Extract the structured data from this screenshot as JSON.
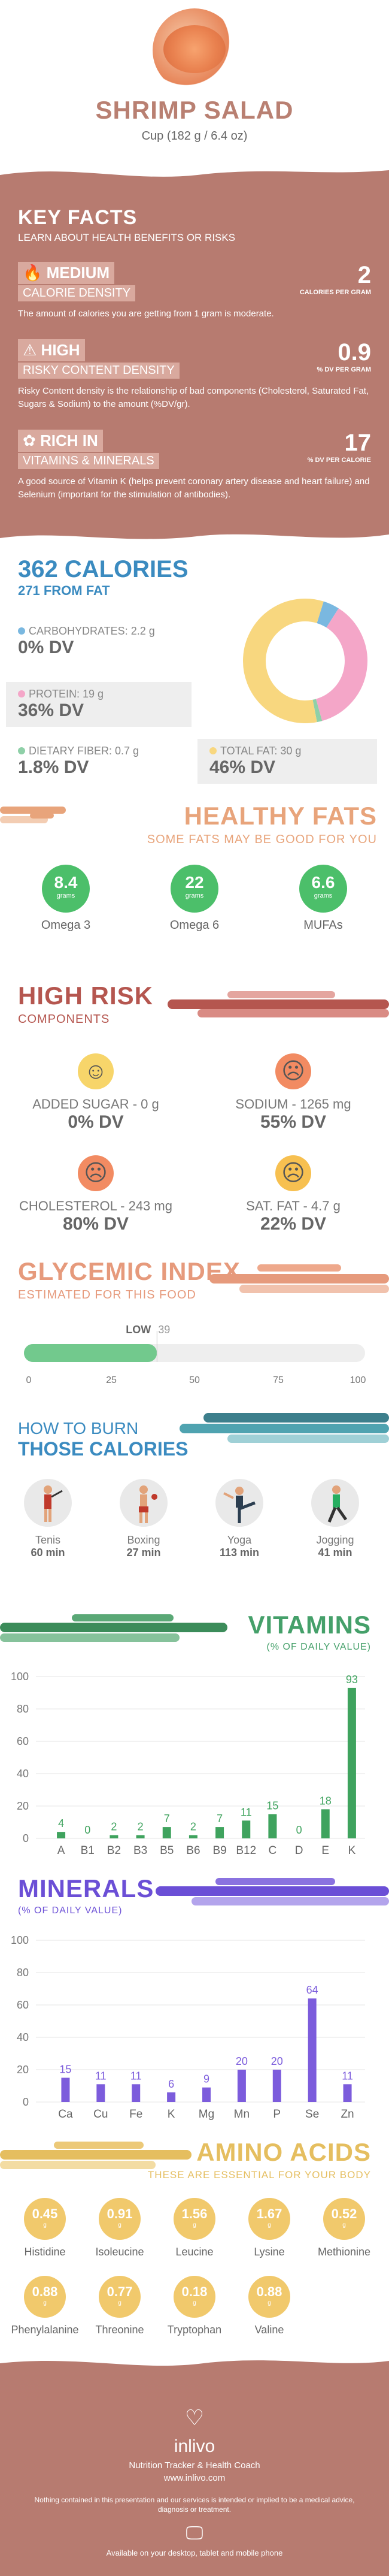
{
  "header": {
    "title": "SHRIMP SALAD",
    "serving": "Cup (182 g / 6.4 oz)"
  },
  "key_facts": {
    "title": "KEY FACTS",
    "subtitle": "LEARN ABOUT HEALTH BENEFITS OR RISKS",
    "facts": [
      {
        "tag1": "MEDIUM",
        "tag2": "CALORIE DENSITY",
        "value": "2",
        "unit": "CALORIES PER GRAM",
        "desc": "The amount of calories you are getting from 1 gram is moderate.",
        "icon": "flame-icon"
      },
      {
        "tag1": "HIGH",
        "tag2": "RISKY CONTENT DENSITY",
        "value": "0.9",
        "unit": "% DV PER GRAM",
        "desc": "Risky Content density is the relationship of bad components (Cholesterol, Saturated Fat, Sugars & Sodium) to the amount (%DV/gr).",
        "icon": "warning-icon"
      },
      {
        "tag1": "RICH  IN",
        "tag2": "VITAMINS & MINERALS",
        "value": "17",
        "unit": "% DV PER CALORIE",
        "desc": "A good source of Vitamin K (helps prevent coronary artery disease and heart failure) and Selenium (important for the stimulation of antibodies).",
        "icon": "leaf-icon"
      }
    ]
  },
  "calories": {
    "title": "362 CALORIES",
    "from_fat": "271 FROM FAT",
    "carbs_label": "CARBOHYDRATES: 2.2 g",
    "carbs_dv": "0% DV",
    "protein_label": "PROTEIN: 19 g",
    "protein_dv": "36% DV",
    "fiber_label": "DIETARY FIBER: 0.7 g",
    "fiber_dv": "1.8% DV",
    "fat_label": "TOTAL FAT: 30 g",
    "fat_dv": "46% DV",
    "colors": {
      "carbs": "#7ab8e0",
      "protein": "#f4a6c8",
      "fiber": "#8fd0a8",
      "fat": "#f8d77f"
    }
  },
  "chart_data": [
    {
      "type": "pie",
      "categories": [
        "Carbohydrates",
        "Protein",
        "Dietary Fiber",
        "Total Fat"
      ],
      "values": [
        2.2,
        19,
        0.7,
        30
      ]
    },
    {
      "type": "bar",
      "categories": [
        "A",
        "B1",
        "B2",
        "B3",
        "B5",
        "B6",
        "B9",
        "B12",
        "C",
        "D",
        "E",
        "K"
      ],
      "values": [
        4,
        0,
        2,
        2,
        7,
        2,
        7,
        11,
        15,
        0,
        18,
        93
      ],
      "ylim": [
        0,
        100
      ]
    },
    {
      "type": "bar",
      "categories": [
        "Ca",
        "Cu",
        "Fe",
        "K",
        "Mg",
        "Mn",
        "P",
        "Se",
        "Zn"
      ],
      "values": [
        15,
        11,
        11,
        6,
        9,
        20,
        20,
        64,
        11
      ],
      "ylim": [
        0,
        100
      ]
    }
  ],
  "healthy_fats": {
    "title": "HEALTHY FATS",
    "subtitle": "SOME FATS MAY BE GOOD FOR YOU",
    "items": [
      {
        "value": "8.4",
        "unit": "grams",
        "label": "Omega 3"
      },
      {
        "value": "22",
        "unit": "grams",
        "label": "Omega 6"
      },
      {
        "value": "6.6",
        "unit": "grams",
        "label": "MUFAs"
      }
    ]
  },
  "high_risk": {
    "title": "HIGH RISK",
    "subtitle": "COMPONENTS",
    "items": [
      {
        "label": "ADDED SUGAR - 0 g",
        "dv": "0% DV",
        "face": "happy"
      },
      {
        "label": "SODIUM - 1265 mg",
        "dv": "55% DV",
        "face": "sad"
      },
      {
        "label": "CHOLESTEROL - 243 mg",
        "dv": "80% DV",
        "face": "sad"
      },
      {
        "label": "SAT. FAT - 4.7 g",
        "dv": "22% DV",
        "face": "neutral"
      }
    ]
  },
  "glycemic": {
    "title": "GLYCEMIC INDEX",
    "subtitle": "ESTIMATED FOR THIS FOOD",
    "level": "LOW",
    "value": 39,
    "value_text": "39",
    "ticks": [
      "0",
      "25",
      "50",
      "75",
      "100"
    ]
  },
  "burn": {
    "title1": "HOW TO BURN",
    "title2": "THOSE CALORIES",
    "activities": [
      {
        "name": "Tenis",
        "minutes": "60 min",
        "icon": "tennis-player-icon"
      },
      {
        "name": "Boxing",
        "minutes": "27 min",
        "icon": "boxer-icon"
      },
      {
        "name": "Yoga",
        "minutes": "113 min",
        "icon": "yoga-pose-icon"
      },
      {
        "name": "Jogging",
        "minutes": "41 min",
        "icon": "jogger-icon"
      }
    ]
  },
  "vitamins": {
    "title": "VITAMINS",
    "subtitle": "(% OF DAILY VALUE)",
    "yticks": [
      "100",
      "80",
      "60",
      "40",
      "20",
      "0"
    ],
    "color": "#3fa35e"
  },
  "minerals": {
    "title": "MINERALS",
    "subtitle": "(% OF DAILY VALUE)",
    "yticks": [
      "100",
      "80",
      "60",
      "40",
      "20",
      "0"
    ],
    "color": "#7c5cdc"
  },
  "amino": {
    "title": "AMINO ACIDS",
    "subtitle": "THESE ARE ESSENTIAL FOR YOUR BODY",
    "items": [
      {
        "value": "0.45",
        "unit": "g",
        "label": "Histidine"
      },
      {
        "value": "0.91",
        "unit": "g",
        "label": "Isoleucine"
      },
      {
        "value": "1.56",
        "unit": "g",
        "label": "Leucine"
      },
      {
        "value": "1.67",
        "unit": "g",
        "label": "Lysine"
      },
      {
        "value": "0.52",
        "unit": "g",
        "label": "Methionine"
      },
      {
        "value": "0.88",
        "unit": "g",
        "label": "Phenylalanine"
      },
      {
        "value": "0.77",
        "unit": "g",
        "label": "Threonine"
      },
      {
        "value": "0.18",
        "unit": "g",
        "label": "Tryptophan"
      },
      {
        "value": "0.88",
        "unit": "g",
        "label": "Valine"
      }
    ]
  },
  "footer": {
    "logo": "inlivo",
    "tagline": "Nutrition Tracker & Health Coach",
    "url": "www.inlivo.com",
    "disclaimer": "Nothing contained in this presentation and our services is intended or implied to be a medical advice, diagnosis or treatment.",
    "available": "Available on your desktop, tablet and mobile phone"
  }
}
